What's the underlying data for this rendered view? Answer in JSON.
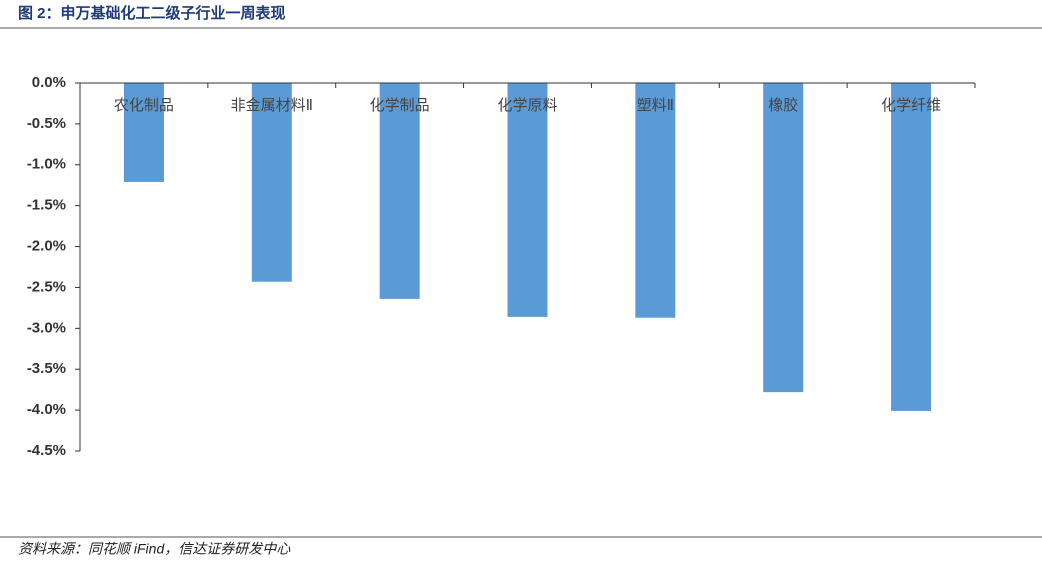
{
  "header": {
    "title": "图 2：申万基础化工二级子行业一周表现"
  },
  "chart_data": {
    "type": "bar",
    "categories": [
      "农化制品",
      "非金属材料Ⅱ",
      "化学制品",
      "化学原料",
      "塑料Ⅱ",
      "橡胶",
      "化学纤维"
    ],
    "values": [
      -1.21,
      -2.43,
      -2.64,
      -2.86,
      -2.87,
      -3.78,
      -4.01
    ],
    "color": "#5b9bd5",
    "ylim": [
      0,
      -4.5
    ],
    "yticks": [
      {
        "value": 0,
        "label": "0.0%"
      },
      {
        "value": -0.5,
        "label": "-0.5%"
      },
      {
        "value": -1,
        "label": "-1.0%"
      },
      {
        "value": -1.5,
        "label": "-1.5%"
      },
      {
        "value": -2,
        "label": "-2.0%"
      },
      {
        "value": -2.5,
        "label": "-2.5%"
      },
      {
        "value": -3,
        "label": "-3.0%"
      },
      {
        "value": -3.5,
        "label": "-3.5%"
      },
      {
        "value": -4,
        "label": "-4.0%"
      },
      {
        "value": -4.5,
        "label": "-4.5%"
      }
    ],
    "grid": false
  },
  "footer": {
    "source": "资料来源：同花顺 iFind，信达证券研发中心"
  }
}
